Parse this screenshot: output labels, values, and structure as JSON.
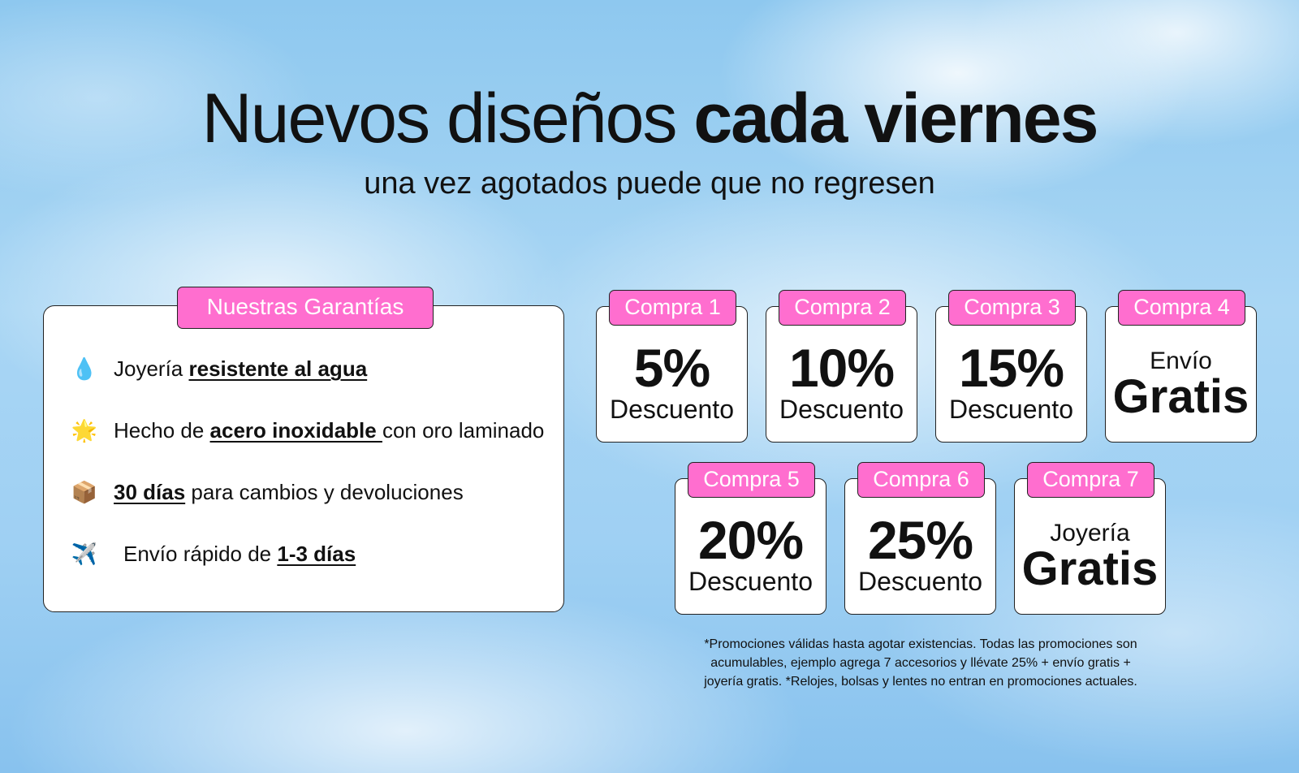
{
  "header": {
    "title_regular": "Nuevos diseños ",
    "title_bold": "cada viernes",
    "subtitle": "una vez agotados puede que no regresen"
  },
  "guarantees": {
    "heading": "Nuestras Garantías",
    "items": [
      {
        "icon": "water-drop-icon",
        "glyph": "💧",
        "before": "Joyería ",
        "bold": "resistente al agua",
        "after": ""
      },
      {
        "icon": "star-icon",
        "glyph": "🌟",
        "before": "Hecho de ",
        "bold": "acero inoxidable ",
        "after": "con oro laminado"
      },
      {
        "icon": "package-icon",
        "glyph": "📦",
        "before": "",
        "bold": "30 días",
        "after": " para cambios y devoluciones"
      },
      {
        "icon": "airplane-icon",
        "glyph": "✈️",
        "before": "Envío rápido de ",
        "bold": "1-3 días",
        "after": ""
      }
    ]
  },
  "promos": [
    {
      "label": "Compra 1",
      "big": "5%",
      "small": "Descuento"
    },
    {
      "label": "Compra 2",
      "big": "10%",
      "small": "Descuento"
    },
    {
      "label": "Compra 3",
      "big": "15%",
      "small": "Descuento"
    },
    {
      "label": "Compra 4",
      "top": "Envío",
      "big": "Gratis"
    },
    {
      "label": "Compra 5",
      "big": "20%",
      "small": "Descuento"
    },
    {
      "label": "Compra 6",
      "big": "25%",
      "small": "Descuento"
    },
    {
      "label": "Compra 7",
      "top": "Joyería",
      "big": "Gratis"
    }
  ],
  "footnote": {
    "line1": "*Promociones válidas hasta agotar existencias. Todas las promociones son",
    "line2": "acumulables, ejemplo agrega 7 accesorios y llévate 25% + envío gratis +",
    "line3": "joyería gratis. *Relojes, bolsas y lentes no entran en promociones actuales."
  },
  "colors": {
    "accent_pink": "#ff6ecf",
    "sky_blue": "#9fd0f3"
  }
}
